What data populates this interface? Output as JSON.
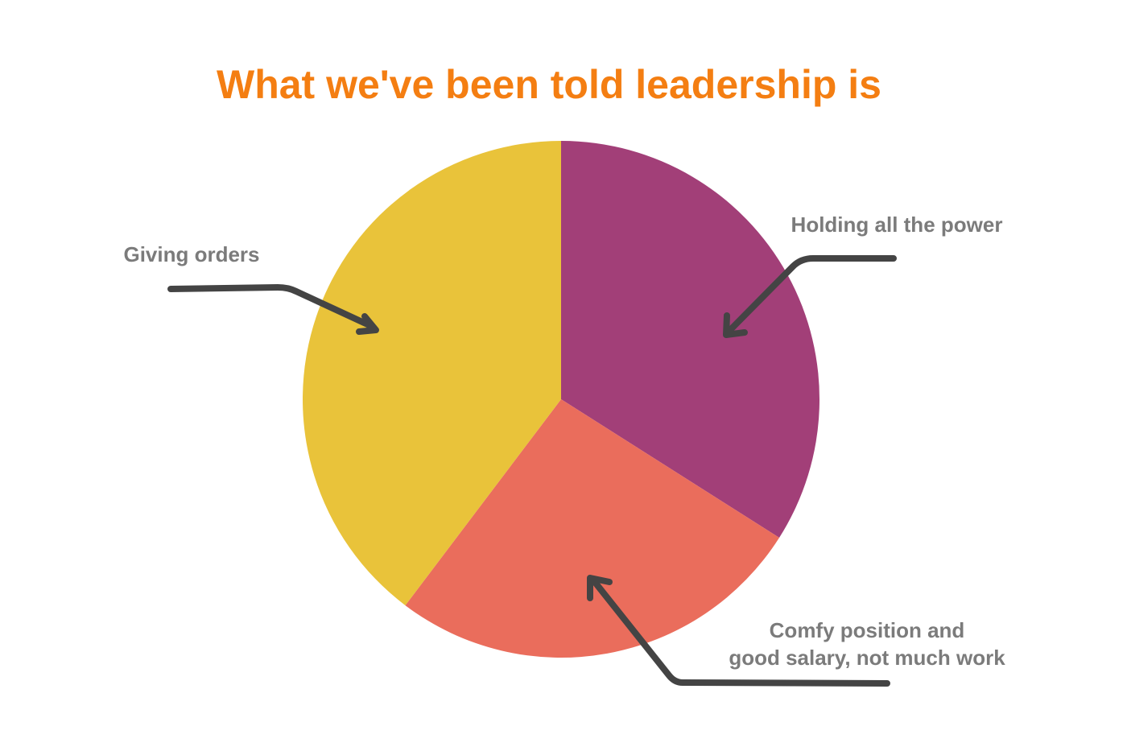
{
  "chart_data": {
    "type": "pie",
    "title": "What we've been told leadership is",
    "start_angle_deg": 0,
    "direction": "clockwise",
    "slices": [
      {
        "label": "Holding all the power",
        "value": 34.0,
        "color": "#a23f78"
      },
      {
        "label": "Comfy position and good salary, not much work",
        "value": 26.3,
        "color": "#ea6d5c"
      },
      {
        "label": "Giving orders",
        "value": 39.7,
        "color": "#e9c33a"
      }
    ],
    "annotations": [
      {
        "slice": 0,
        "lines": [
          "Holding all the power"
        ]
      },
      {
        "slice": 1,
        "lines": [
          "Comfy position and",
          "good salary, not much work"
        ]
      },
      {
        "slice": 2,
        "lines": [
          "Giving orders"
        ]
      }
    ],
    "legend": "none"
  },
  "colors": {
    "title": "#f47e12",
    "annotation_text": "#7b7b7b",
    "arrow": "#444444",
    "background": "#ffffff"
  }
}
